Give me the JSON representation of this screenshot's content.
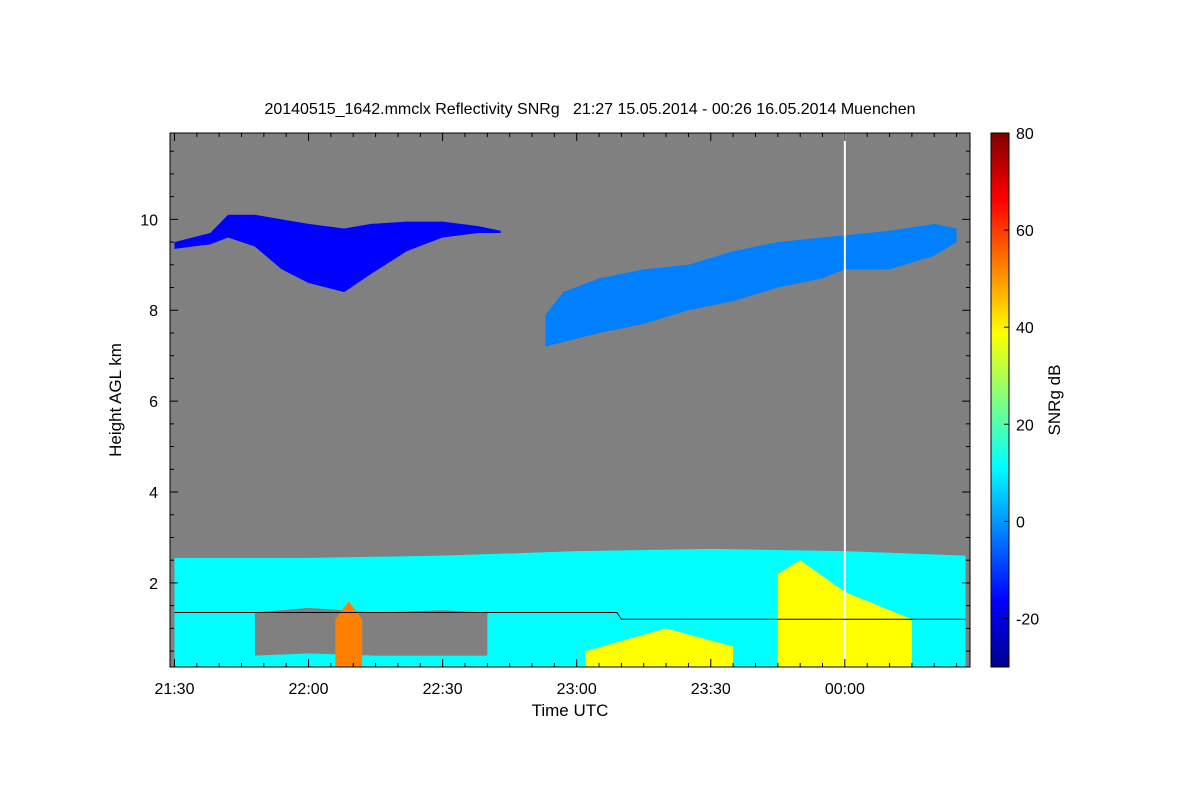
{
  "chart_data": {
    "type": "heatmap",
    "title": "20140515_1642.mmclx Reflectivity SNRg   21:27 15.05.2014 - 00:26 16.05.2014 Muenchen",
    "xlabel": "Time UTC",
    "ylabel": "Height AGL km",
    "colorbar_label": "SNRg dB",
    "x_tick_labels": [
      "21:30",
      "22:00",
      "22:30",
      "23:00",
      "23:30",
      "00:00"
    ],
    "x_tick_minutes": [
      0,
      30,
      60,
      90,
      120,
      150
    ],
    "xlim_minutes": [
      -1,
      178
    ],
    "y_ticks": [
      2,
      4,
      6,
      8,
      10
    ],
    "ylim": [
      0.15,
      11.9
    ],
    "colorbar_ticks": [
      -20,
      0,
      20,
      40,
      60,
      80
    ],
    "colorbar_range": [
      -30,
      80
    ],
    "colormap": [
      "#00008f",
      "#0000ff",
      "#0080ff",
      "#00ffff",
      "#80ff80",
      "#ffff00",
      "#ff8000",
      "#ff0000",
      "#800000"
    ],
    "background_color": "#808080",
    "annotations": {
      "vertical_marker_minutes": 150,
      "boundary_line": {
        "segments": [
          [
            0,
            1.35
          ],
          [
            99,
            1.35
          ],
          [
            100,
            1.2
          ],
          [
            177,
            1.2
          ]
        ]
      }
    },
    "regions": [
      {
        "name": "upper cloud layer west",
        "snr_db": -20,
        "profile": [
          [
            0,
            9.35,
            9.5
          ],
          [
            8,
            9.45,
            9.7
          ],
          [
            12,
            9.6,
            10.1
          ],
          [
            18,
            9.4,
            10.1
          ],
          [
            24,
            8.9,
            10.0
          ],
          [
            30,
            8.6,
            9.9
          ],
          [
            38,
            8.4,
            9.8
          ],
          [
            44,
            8.8,
            9.9
          ],
          [
            52,
            9.3,
            9.95
          ],
          [
            60,
            9.6,
            9.95
          ],
          [
            68,
            9.7,
            9.85
          ],
          [
            73,
            9.7,
            9.75
          ]
        ]
      },
      {
        "name": "upper cloud layer east",
        "snr_db": -5,
        "profile": [
          [
            83,
            7.2,
            7.9
          ],
          [
            87,
            7.3,
            8.4
          ],
          [
            95,
            7.5,
            8.7
          ],
          [
            105,
            7.7,
            8.9
          ],
          [
            115,
            8.0,
            9.0
          ],
          [
            125,
            8.2,
            9.3
          ],
          [
            135,
            8.5,
            9.5
          ],
          [
            145,
            8.7,
            9.6
          ],
          [
            150,
            8.9,
            9.65
          ],
          [
            160,
            8.9,
            9.75
          ],
          [
            170,
            9.2,
            9.9
          ],
          [
            175,
            9.5,
            9.8
          ]
        ]
      },
      {
        "name": "boundary layer",
        "snr_db": 5,
        "profile": [
          [
            0,
            0.15,
            2.55
          ],
          [
            30,
            0.15,
            2.55
          ],
          [
            60,
            0.15,
            2.6
          ],
          [
            90,
            0.15,
            2.7
          ],
          [
            120,
            0.15,
            2.75
          ],
          [
            150,
            0.15,
            2.7
          ],
          [
            177,
            0.15,
            2.6
          ]
        ]
      },
      {
        "name": "boundary layer gap",
        "snr_db": null,
        "profile": [
          [
            18,
            0.4,
            1.35
          ],
          [
            30,
            0.45,
            1.45
          ],
          [
            45,
            0.4,
            1.35
          ],
          [
            60,
            0.4,
            1.4
          ],
          [
            70,
            0.4,
            1.35
          ]
        ]
      },
      {
        "name": "strong echo 22:00",
        "snr_db": 50,
        "profile": [
          [
            36,
            0.15,
            1.2
          ],
          [
            39,
            0.15,
            1.6
          ],
          [
            42,
            0.15,
            1.2
          ]
        ]
      },
      {
        "name": "strong echo 23:15",
        "snr_db": 40,
        "profile": [
          [
            92,
            0.15,
            0.5
          ],
          [
            110,
            0.15,
            1.0
          ],
          [
            125,
            0.15,
            0.6
          ]
        ]
      },
      {
        "name": "strong echo 23:50",
        "snr_db": 35,
        "profile": [
          [
            135,
            0.15,
            2.2
          ],
          [
            140,
            0.15,
            2.5
          ],
          [
            150,
            0.15,
            1.8
          ],
          [
            165,
            0.15,
            1.2
          ]
        ]
      }
    ]
  }
}
